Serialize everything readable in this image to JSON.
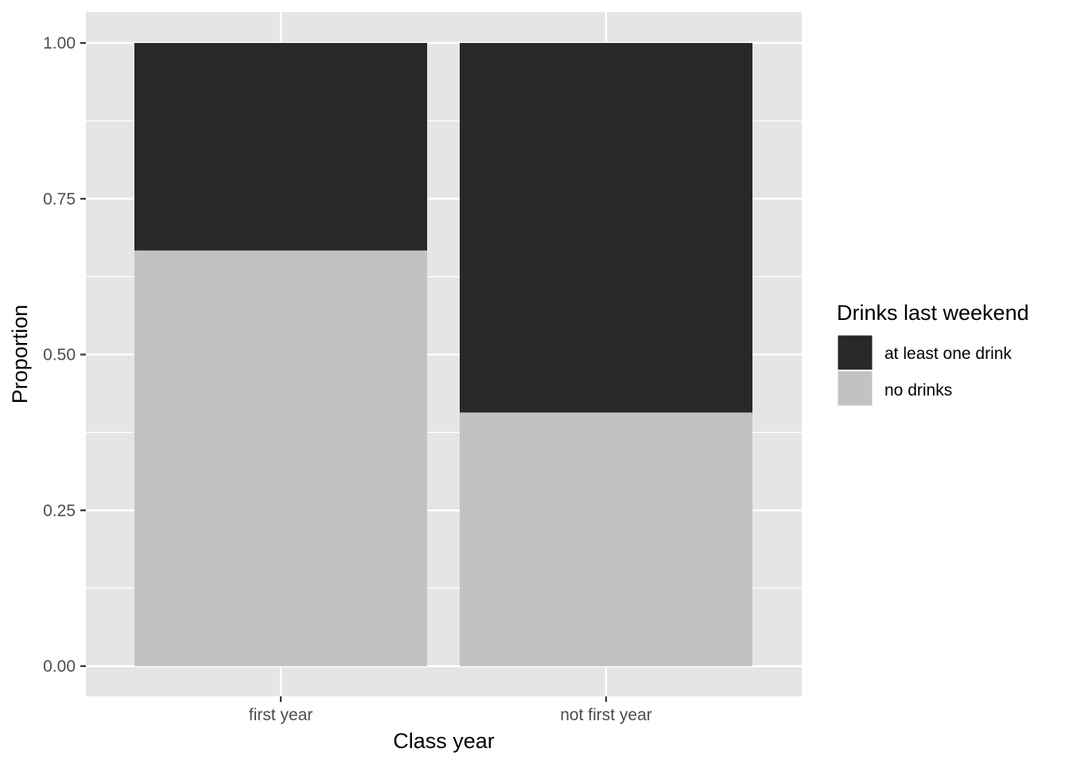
{
  "chart_data": {
    "type": "bar",
    "stacked": true,
    "categories": [
      "first year",
      "not first year"
    ],
    "series": [
      {
        "name": "no drinks",
        "values": [
          0.667,
          0.407
        ]
      },
      {
        "name": "at least one drink",
        "values": [
          0.333,
          0.593
        ]
      }
    ],
    "xlabel": "Class year",
    "ylabel": "Proportion",
    "ylim": [
      0,
      1
    ],
    "yticks": [
      0,
      0.25,
      0.5,
      0.75,
      1
    ],
    "ytick_labels": [
      "0.00",
      "0.25",
      "0.50",
      "0.75",
      "1.00"
    ],
    "grid": true,
    "legend": {
      "title": "Drinks last weekend",
      "placement": "right",
      "entries": [
        "at least one drink",
        "no drinks"
      ]
    },
    "colors": {
      "panel_background": "#e5e5e5",
      "grid": "#ffffff",
      "no drinks": "#c2c2c2",
      "at least one drink": "#282828",
      "tick": "#333333",
      "tick_label": "#4d4d4d"
    }
  }
}
